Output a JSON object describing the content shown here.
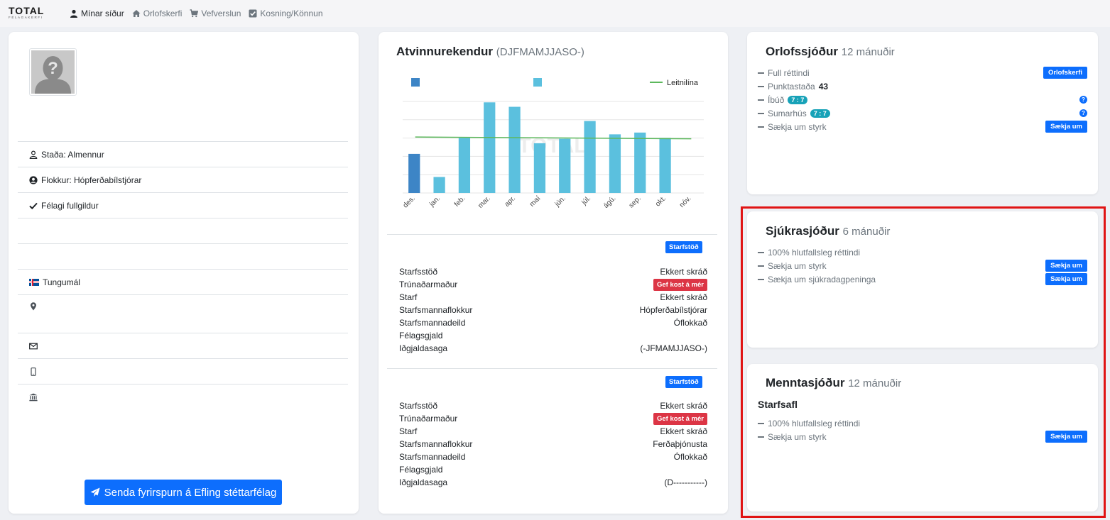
{
  "nav": {
    "logo_main": "TOTAL",
    "logo_sub": "FÉLAGAKERFI",
    "items": [
      {
        "label": "Mínar síður",
        "icon": "user-icon",
        "active": true
      },
      {
        "label": "Orlofskerfi",
        "icon": "home-icon",
        "active": false
      },
      {
        "label": "Vefverslun",
        "icon": "cart-icon",
        "active": false
      },
      {
        "label": "Kosning/Könnun",
        "icon": "check-square-icon",
        "active": false
      }
    ]
  },
  "profile": {
    "rows": [
      {
        "icon": "user-outline-icon",
        "text": "Staða: Almennur"
      },
      {
        "icon": "user-circle-icon",
        "text": "Flokkur: Hópferðabílstjórar"
      },
      {
        "icon": "checkmark-icon",
        "text": "Félagi fullgildur"
      },
      {
        "icon": "",
        "text": ""
      },
      {
        "icon": "",
        "text": ""
      },
      {
        "icon": "iceland-flag-icon",
        "text": "Tungumál"
      },
      {
        "icon": "map-marker-icon",
        "text": ""
      },
      {
        "icon": "envelope-icon",
        "text": ""
      },
      {
        "icon": "mobile-icon",
        "text": ""
      },
      {
        "icon": "bank-icon",
        "text": ""
      }
    ],
    "send_button": "Senda fyrirspurn á Efling stéttarfélag"
  },
  "employer": {
    "title": "Atvinnurekendur",
    "title_sub": "(DJFMAMJJASO-)",
    "sections": [
      {
        "button": "Starfstöð",
        "rows": [
          {
            "label": "Starfsstöð",
            "value": "Ekkert skráð"
          },
          {
            "label": "Trúnaðarmaður",
            "value": "Gef kost á mér",
            "badge": true
          },
          {
            "label": "Starf",
            "value": "Ekkert skráð"
          },
          {
            "label": "Starfsmannaflokkur",
            "value": "Hópferðabílstjórar"
          },
          {
            "label": "Starfsmannadeild",
            "value": "Óflokkað"
          },
          {
            "label": "Félagsgjald",
            "value": ""
          },
          {
            "label": "Iðgjaldasaga",
            "value": "(-JFMAMJJASO-)"
          }
        ]
      },
      {
        "button": "Starfstöð",
        "rows": [
          {
            "label": "Starfsstöð",
            "value": "Ekkert skráð"
          },
          {
            "label": "Trúnaðarmaður",
            "value": "Gef kost á mér",
            "badge": true
          },
          {
            "label": "Starf",
            "value": "Ekkert skráð"
          },
          {
            "label": "Starfsmannaflokkur",
            "value": "Ferðaþjónusta"
          },
          {
            "label": "Starfsmannadeild",
            "value": "Óflokkað"
          },
          {
            "label": "Félagsgjald",
            "value": ""
          },
          {
            "label": "Iðgjaldasaga",
            "value": "(D-----------)"
          }
        ]
      }
    ]
  },
  "chart_data": {
    "type": "bar",
    "categories": [
      "des.",
      "jan.",
      "feb.",
      "mar.",
      "apr.",
      "maí",
      "jún.",
      "júl.",
      "ágú.",
      "sep.",
      "okt.",
      "nóv."
    ],
    "values": [
      2.2,
      0.9,
      3.1,
      5.1,
      4.85,
      2.8,
      3.05,
      4.05,
      3.3,
      3.4,
      3.1,
      0
    ],
    "colors": [
      "#3d85c6",
      "#5bc0de",
      "#5bc0de",
      "#5bc0de",
      "#5bc0de",
      "#5bc0de",
      "#5bc0de",
      "#5bc0de",
      "#5bc0de",
      "#5bc0de",
      "#5bc0de",
      "#5bc0de"
    ],
    "trend": [
      3.15,
      3.05
    ],
    "trend_color": "#5cb85c",
    "legend": [
      {
        "color": "#3d85c6",
        "label": ""
      },
      {
        "color": "#5bc0de",
        "label": ""
      },
      {
        "color": "#5cb85c",
        "label": "Leitnilína",
        "line": true
      }
    ],
    "ylim": [
      0,
      5.1
    ],
    "grid": true,
    "watermark": "TOTAL"
  },
  "funds": {
    "orlof": {
      "title": "Orlofssjóður",
      "period": "12 mánuðir",
      "rows": [
        {
          "label": "Full réttindi",
          "button": "Orlofskerfi"
        },
        {
          "label": "Punktastaða",
          "bold": "43"
        },
        {
          "label": "Íbúð",
          "pill": "7 : 7",
          "help": "?"
        },
        {
          "label": "Sumarhús",
          "pill": "7 : 7",
          "help": "?"
        },
        {
          "label": "Sækja um styrk",
          "button": "Sækja um"
        }
      ]
    },
    "sjukra": {
      "title": "Sjúkrasjóður",
      "period": "6 mánuðir",
      "rows": [
        {
          "label": "100% hlutfallsleg réttindi"
        },
        {
          "label": "Sækja um styrk",
          "button": "Sækja um"
        },
        {
          "label": "Sækja um sjúkradagpeninga",
          "button": "Sækja um"
        }
      ]
    },
    "mennta": {
      "title": "Menntasjóður",
      "period": "12 mánuðir",
      "subtitle": "Starfsafl",
      "rows": [
        {
          "label": "100% hlutfallsleg réttindi"
        },
        {
          "label": "Sækja um styrk",
          "button": "Sækja um"
        }
      ]
    }
  }
}
